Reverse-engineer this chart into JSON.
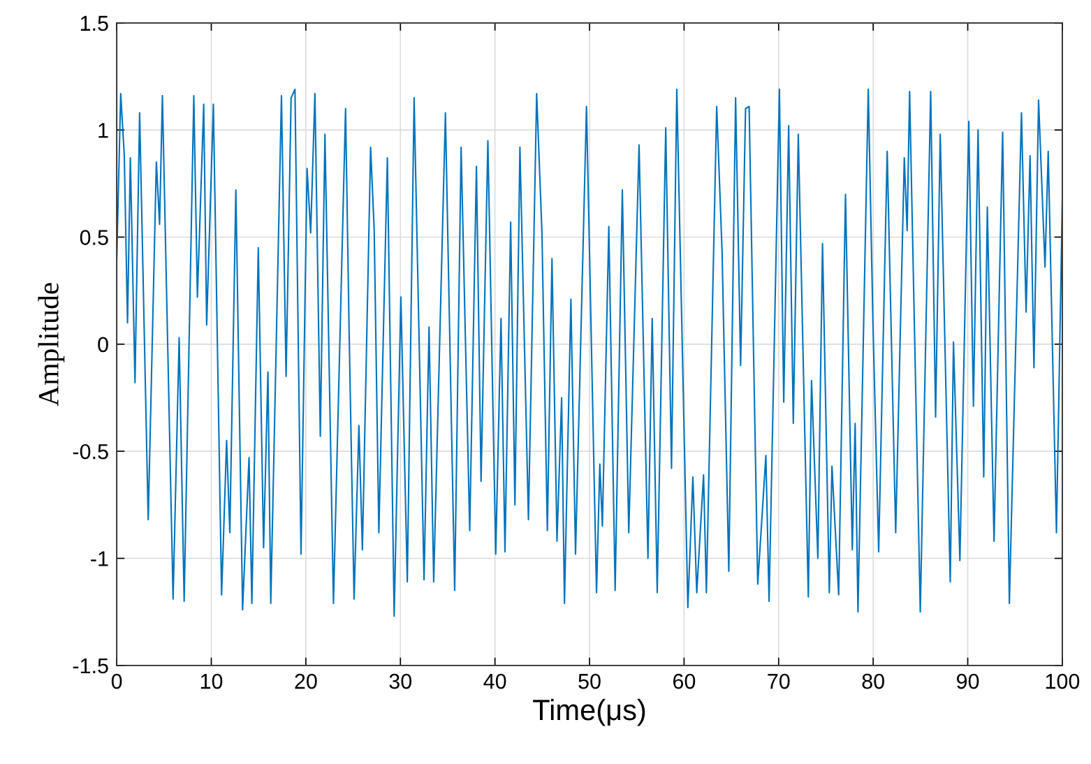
{
  "chart_data": {
    "type": "line",
    "xlabel": "Time(μs)",
    "ylabel": "Amplitude",
    "xlim": [
      0,
      100
    ],
    "xticks": [
      0,
      10,
      20,
      30,
      40,
      50,
      60,
      70,
      80,
      90,
      100
    ],
    "ylim": [
      -1.5,
      1.5
    ],
    "yticks": [
      -1.5,
      -1,
      -0.5,
      0,
      0.5,
      1,
      1.5
    ],
    "grid": true,
    "line_style": "solid",
    "x": [
      0,
      0.42,
      0.8,
      1.14,
      1.44,
      1.93,
      2.42,
      3.33,
      4.19,
      4.53,
      4.83,
      5.96,
      6.6,
      7.13,
      8.15,
      8.53,
      9.2,
      9.51,
      10.22,
      10.6,
      11.09,
      11.62,
      11.96,
      12.6,
      13.31,
      13.99,
      14.29,
      14.97,
      15.53,
      15.99,
      16.29,
      17.42,
      17.91,
      18.44,
      18.85,
      19.49,
      20.13,
      20.51,
      20.96,
      21.53,
      22.02,
      22.92,
      24.2,
      24.58,
      25.1,
      25.61,
      25.98,
      26.85,
      27.23,
      27.72,
      28.62,
      29.34,
      30.05,
      30.73,
      31.45,
      32.5,
      33.03,
      33.52,
      34.76,
      35.74,
      36.42,
      37.33,
      38.04,
      38.53,
      39.25,
      40.08,
      40.64,
      41.06,
      41.66,
      42.11,
      42.64,
      43.54,
      44.41,
      44.97,
      45.54,
      46.03,
      46.56,
      47.05,
      47.35,
      48.03,
      48.52,
      49.68,
      50.74,
      51.09,
      51.36,
      52.04,
      52.71,
      53.47,
      54.15,
      55.24,
      56.18,
      56.63,
      57.16,
      58.06,
      58.67,
      59.23,
      60.4,
      60.93,
      61.34,
      62.06,
      62.36,
      63.45,
      64.02,
      64.73,
      65.45,
      65.98,
      66.5,
      66.88,
      67.79,
      68.65,
      68.99,
      70.08,
      70.54,
      71.06,
      71.55,
      72.08,
      73.14,
      73.48,
      74.15,
      74.64,
      75.36,
      75.64,
      76.35,
      77.07,
      77.79,
      78.09,
      78.39,
      79.48,
      79.97,
      80.58,
      81.48,
      82.38,
      83.29,
      83.59,
      83.85,
      84.98,
      86.08,
      86.6,
      87.09,
      88.15,
      88.49,
      89.17,
      90.11,
      90.6,
      91.09,
      91.69,
      92.07,
      92.78,
      93.69,
      94.4,
      95.68,
      96.17,
      96.59,
      97.0,
      97.49,
      98.17,
      98.51,
      99.38,
      100
    ],
    "series": [
      {
        "color": "#0072bd",
        "values": [
          0.4,
          1.17,
          0.88,
          0.1,
          0.87,
          -0.18,
          1.08,
          -0.82,
          0.85,
          0.56,
          1.16,
          -1.19,
          0.03,
          -1.2,
          1.16,
          0.22,
          1.12,
          0.09,
          1.12,
          0.12,
          -1.17,
          -0.45,
          -0.88,
          0.72,
          -1.24,
          -0.53,
          -1.21,
          0.45,
          -0.95,
          -0.13,
          -1.21,
          1.16,
          -0.15,
          1.15,
          1.19,
          -0.98,
          0.82,
          0.52,
          1.17,
          -0.43,
          0.98,
          -1.21,
          1.1,
          0.05,
          -1.19,
          -0.38,
          -0.96,
          0.92,
          0.53,
          -0.88,
          0.87,
          -1.27,
          0.22,
          -1.11,
          1.15,
          -1.1,
          0.08,
          -1.11,
          1.08,
          -1.15,
          0.92,
          -0.87,
          0.83,
          -0.64,
          0.95,
          -0.98,
          0.12,
          -0.97,
          0.57,
          -0.75,
          0.92,
          -0.82,
          1.17,
          0.52,
          -0.87,
          0.4,
          -0.92,
          -0.25,
          -1.21,
          0.21,
          -0.98,
          1.11,
          -1.16,
          -0.56,
          -0.85,
          0.55,
          -1.15,
          0.72,
          -0.88,
          0.93,
          -1.0,
          0.12,
          -1.16,
          1.01,
          -0.58,
          1.19,
          -1.23,
          -0.62,
          -1.16,
          -0.61,
          -1.16,
          1.11,
          0.43,
          -1.06,
          1.15,
          -0.1,
          1.1,
          1.11,
          -1.12,
          -0.52,
          -1.2,
          1.19,
          -0.27,
          1.02,
          -0.37,
          0.98,
          -1.18,
          -0.17,
          -1.0,
          0.47,
          -1.16,
          -0.57,
          -1.17,
          0.7,
          -0.96,
          -0.37,
          -1.25,
          1.19,
          0.11,
          -0.97,
          0.9,
          -0.88,
          0.87,
          0.53,
          1.18,
          -1.25,
          1.18,
          -0.34,
          0.98,
          -1.11,
          0.01,
          -1.01,
          1.04,
          -0.29,
          1.0,
          -0.62,
          0.64,
          -0.92,
          0.99,
          -1.21,
          1.08,
          0.15,
          0.88,
          -0.11,
          1.14,
          0.36,
          0.9,
          -0.88,
          0.67
        ]
      }
    ]
  }
}
